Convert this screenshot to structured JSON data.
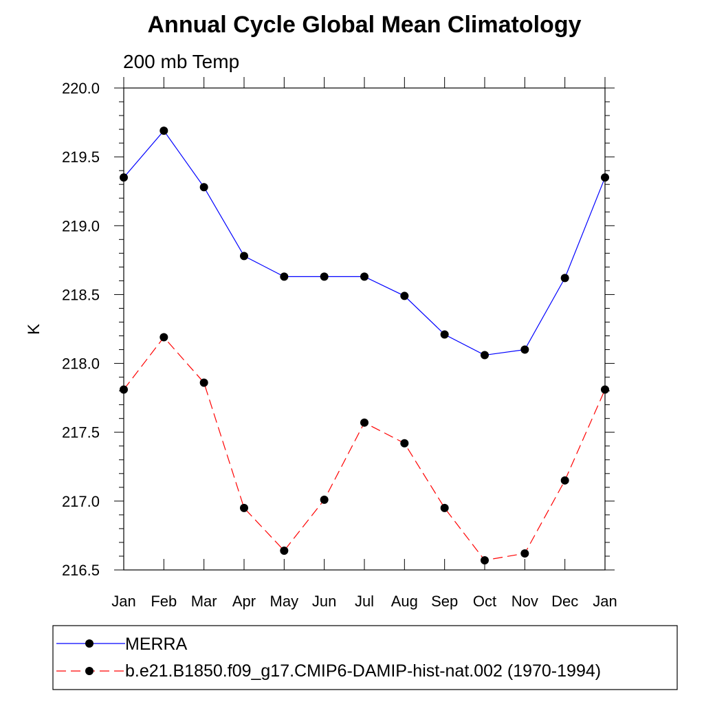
{
  "chart_data": {
    "type": "line",
    "title": "Annual Cycle Global Mean Climatology",
    "subtitle": "200 mb Temp",
    "xlabel": "",
    "ylabel": "K",
    "categories": [
      "Jan",
      "Feb",
      "Mar",
      "Apr",
      "May",
      "Jun",
      "Jul",
      "Aug",
      "Sep",
      "Oct",
      "Nov",
      "Dec",
      "Jan"
    ],
    "ylim": [
      216.5,
      220.0
    ],
    "yticks": [
      "216.5",
      "217.0",
      "217.5",
      "218.0",
      "218.5",
      "219.0",
      "219.5",
      "220.0"
    ],
    "grid": false,
    "legend_placement": "bottom",
    "series": [
      {
        "name": "MERRA",
        "color": "#0000ff",
        "dash": "solid",
        "marker": "circle",
        "values": [
          219.35,
          219.69,
          219.28,
          218.78,
          218.63,
          218.63,
          218.63,
          218.49,
          218.21,
          218.06,
          218.1,
          218.62,
          219.35
        ]
      },
      {
        "name": "b.e21.B1850.f09_g17.CMIP6-DAMIP-hist-nat.002 (1970-1994)",
        "color": "#ff0000",
        "dash": "dashed",
        "marker": "circle",
        "values": [
          217.81,
          218.19,
          217.86,
          216.95,
          216.64,
          217.01,
          217.57,
          217.42,
          216.95,
          216.57,
          216.62,
          217.15,
          217.81
        ]
      }
    ]
  }
}
